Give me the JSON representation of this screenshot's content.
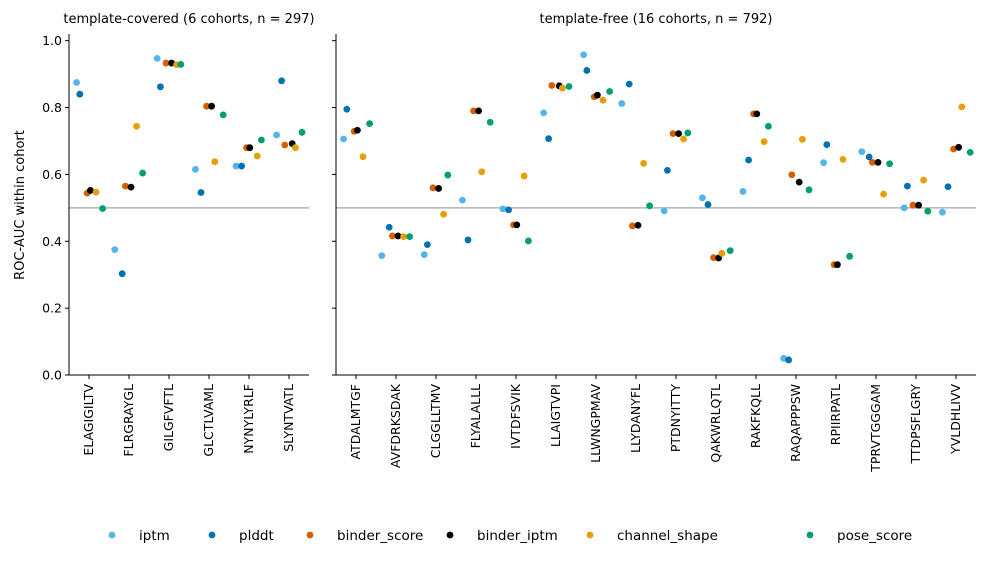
{
  "chart_data": {
    "type": "scatter",
    "ylabel": "ROC-AUC within cohort",
    "ylim": [
      0.0,
      1.02
    ],
    "y_ticks": [
      "0.0",
      "0.2",
      "0.4",
      "0.6",
      "0.8",
      "1.0"
    ],
    "reference_line": 0.5,
    "grid": false,
    "legend_position": "bottom",
    "series_order": [
      "iptm",
      "plddt",
      "binder_score",
      "binder_iptm",
      "channel_shape",
      "pose_score"
    ],
    "series_colors": {
      "iptm": "#56b4e9",
      "plddt": "#0072b2",
      "binder_score": "#d55e00",
      "binder_iptm": "#000000",
      "channel_shape": "#e69f00",
      "pose_score": "#009e73"
    },
    "panels": [
      {
        "title": "template-covered (6 cohorts, n = 297)",
        "categories": [
          "ELAGIGILTV",
          "FLRGRAYGL",
          "GILGFVFTL",
          "GLCTLVAML",
          "NYNYLYRLF",
          "SLYNTVATL"
        ],
        "series": [
          {
            "name": "iptm",
            "values": [
              0.875,
              0.375,
              0.947,
              0.615,
              0.625,
              0.718
            ]
          },
          {
            "name": "plddt",
            "values": [
              0.84,
              0.303,
              0.862,
              0.546,
              0.625,
              0.88
            ]
          },
          {
            "name": "binder_score",
            "values": [
              0.544,
              0.565,
              0.933,
              0.804,
              0.68,
              0.688
            ]
          },
          {
            "name": "binder_iptm",
            "values": [
              0.552,
              0.562,
              0.933,
              0.804,
              0.68,
              0.692
            ]
          },
          {
            "name": "channel_shape",
            "values": [
              0.547,
              0.744,
              0.928,
              0.638,
              0.655,
              0.68
            ]
          },
          {
            "name": "pose_score",
            "values": [
              0.498,
              0.604,
              0.929,
              0.778,
              0.703,
              0.726
            ]
          }
        ]
      },
      {
        "title": "template-free (16 cohorts, n = 792)",
        "categories": [
          "ATDALMTGF",
          "AVFDRKSDAK",
          "CLGGLLTMV",
          "FLYALALLL",
          "IVTDFSVIK",
          "LLAIGTVPI",
          "LLWNGPMAV",
          "LLYDANYFL",
          "PTDNYITTY",
          "QAKWRLQTL",
          "RAKFKQLL",
          "RAQAPPPSW",
          "RPIIRPATL",
          "TPRVTGGGAM",
          "TTDPSFLGRY",
          "YVLDHLIVV"
        ],
        "series": [
          {
            "name": "iptm",
            "values": [
              0.706,
              0.357,
              0.36,
              0.523,
              0.497,
              0.784,
              0.958,
              0.812,
              0.491,
              0.53,
              0.549,
              0.05,
              0.635,
              0.668,
              0.5,
              0.487
            ]
          },
          {
            "name": "plddt",
            "values": [
              0.795,
              0.442,
              0.39,
              0.404,
              0.494,
              0.707,
              0.911,
              0.87,
              0.612,
              0.51,
              0.643,
              0.045,
              0.689,
              0.652,
              0.565,
              0.563
            ]
          },
          {
            "name": "binder_score",
            "values": [
              0.729,
              0.416,
              0.56,
              0.79,
              0.449,
              0.866,
              0.832,
              0.446,
              0.722,
              0.351,
              0.781,
              0.599,
              0.33,
              0.636,
              0.508,
              0.676
            ]
          },
          {
            "name": "binder_iptm",
            "values": [
              0.732,
              0.416,
              0.558,
              0.79,
              0.449,
              0.865,
              0.837,
              0.448,
              0.722,
              0.35,
              0.781,
              0.577,
              0.33,
              0.636,
              0.508,
              0.681
            ]
          },
          {
            "name": "channel_shape",
            "values": [
              0.653,
              0.414,
              0.481,
              0.608,
              0.595,
              0.858,
              0.822,
              0.633,
              0.706,
              0.364,
              0.698,
              0.705,
              0.645,
              0.541,
              0.583,
              0.802
            ]
          },
          {
            "name": "pose_score",
            "values": [
              0.752,
              0.414,
              0.598,
              0.756,
              0.401,
              0.863,
              0.848,
              0.506,
              0.724,
              0.372,
              0.744,
              0.554,
              0.355,
              0.632,
              0.49,
              0.666
            ]
          }
        ]
      }
    ],
    "legend": [
      "iptm",
      "plddt",
      "binder_score",
      "binder_iptm",
      "channel_shape",
      "pose_score"
    ]
  }
}
